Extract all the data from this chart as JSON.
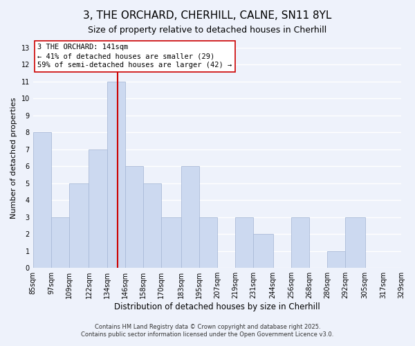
{
  "title": "3, THE ORCHARD, CHERHILL, CALNE, SN11 8YL",
  "subtitle": "Size of property relative to detached houses in Cherhill",
  "xlabel": "Distribution of detached houses by size in Cherhill",
  "ylabel": "Number of detached properties",
  "bar_color": "#ccd9f0",
  "bar_edgecolor": "#aabbd8",
  "background_color": "#eef2fb",
  "grid_color": "#ffffff",
  "annotation_text": "3 THE ORCHARD: 141sqm\n← 41% of detached houses are smaller (29)\n59% of semi-detached houses are larger (42) →",
  "vline_x": 141,
  "vline_color": "#cc0000",
  "bins": [
    85,
    97,
    109,
    122,
    134,
    146,
    158,
    170,
    183,
    195,
    207,
    219,
    231,
    244,
    256,
    268,
    280,
    292,
    305,
    317,
    329
  ],
  "counts": [
    8,
    3,
    5,
    7,
    11,
    6,
    5,
    3,
    6,
    3,
    0,
    3,
    2,
    0,
    3,
    0,
    1,
    3,
    0,
    0
  ],
  "ylim": [
    0,
    13
  ],
  "yticks": [
    0,
    1,
    2,
    3,
    4,
    5,
    6,
    7,
    8,
    9,
    10,
    11,
    12,
    13
  ],
  "footnote1": "Contains HM Land Registry data © Crown copyright and database right 2025.",
  "footnote2": "Contains public sector information licensed under the Open Government Licence v3.0.",
  "title_fontsize": 11,
  "subtitle_fontsize": 9,
  "xlabel_fontsize": 8.5,
  "ylabel_fontsize": 8,
  "tick_fontsize": 7,
  "annot_fontsize": 7.5,
  "footnote_fontsize": 6
}
